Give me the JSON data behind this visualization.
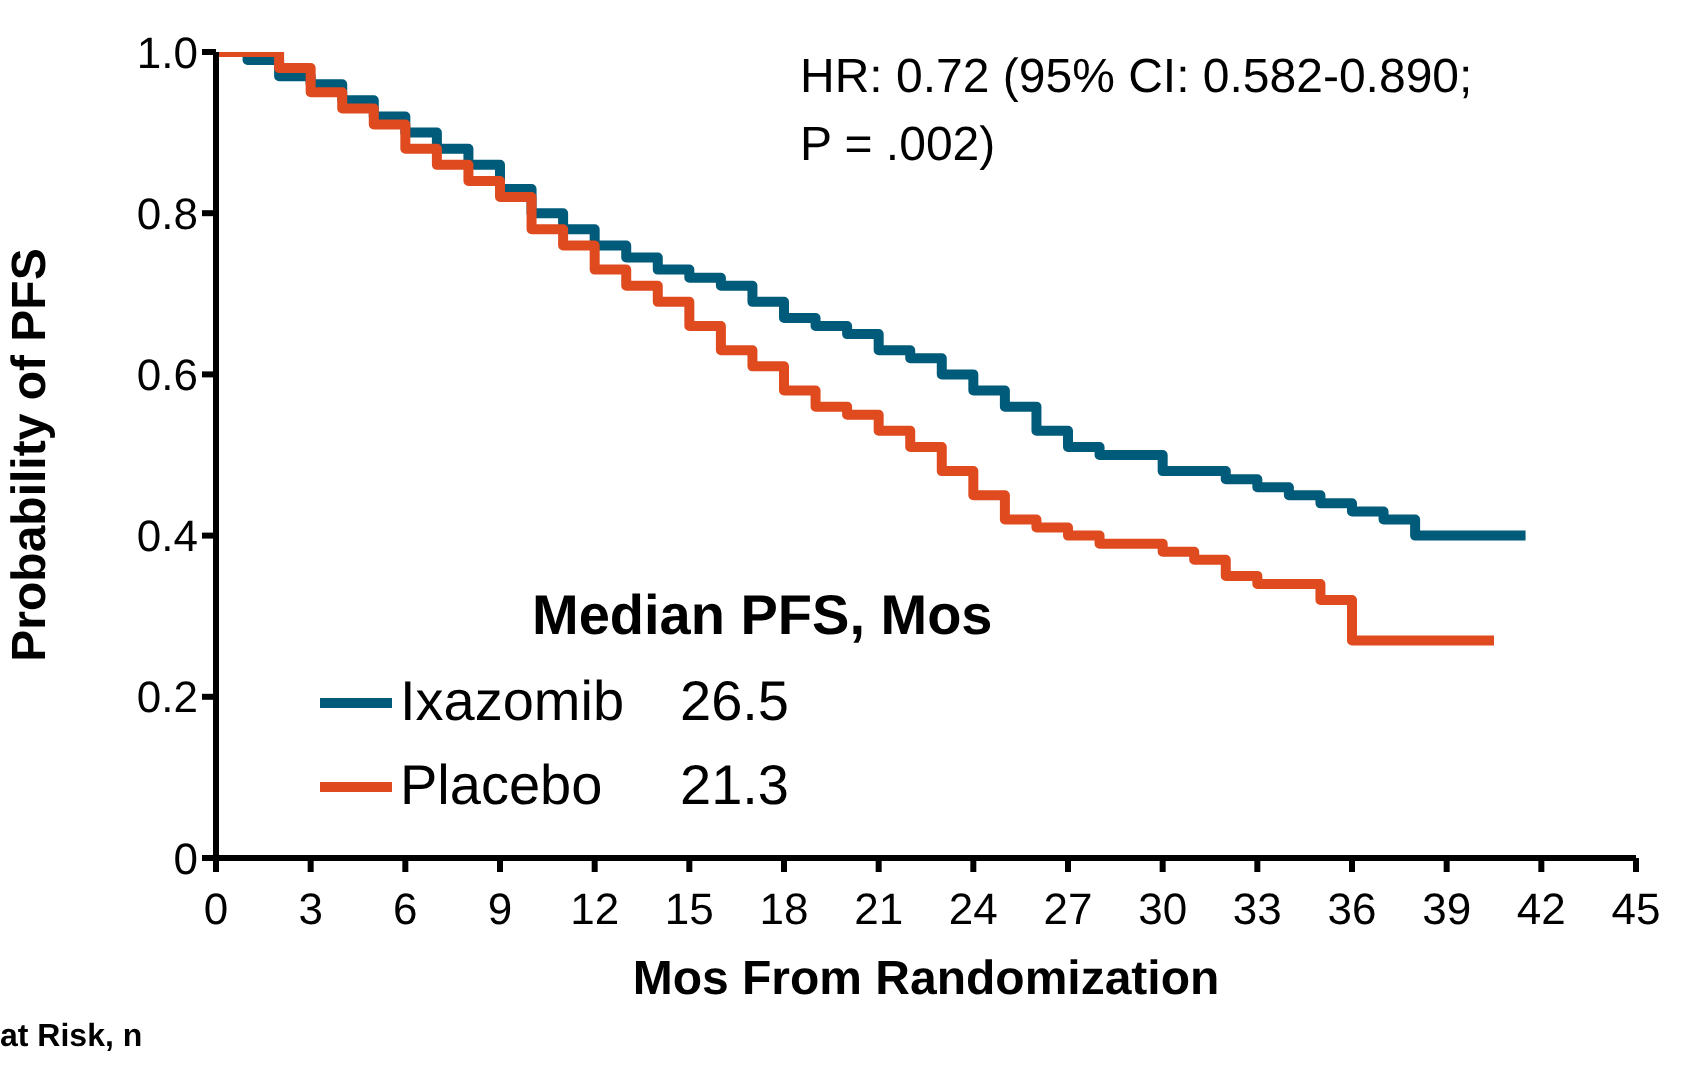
{
  "chart_data": {
    "type": "step",
    "xlabel": "Mos From Randomization",
    "ylabel": "Probability of PFS",
    "legend_title": "Median PFS, Mos",
    "legend": "bottom left",
    "xlim": [
      0,
      45
    ],
    "xticks": [
      0,
      3,
      6,
      9,
      12,
      15,
      18,
      21,
      24,
      27,
      30,
      33,
      36,
      39,
      42,
      45
    ],
    "ylim": [
      0,
      1
    ],
    "yticks": [
      {
        "value": 0,
        "label": "0"
      },
      0.2,
      0.4,
      0.6,
      0.8,
      {
        "value": 1,
        "label": "1.0"
      }
    ],
    "series": [
      {
        "name": "Ixazomib",
        "color": "#005b7a",
        "x": [
          0,
          1,
          2,
          3,
          4,
          5,
          6,
          7,
          8,
          9,
          10,
          11,
          12,
          13,
          14,
          15,
          16,
          17,
          18,
          19,
          20,
          21,
          22,
          23,
          24,
          25,
          26,
          27,
          28,
          29,
          30,
          31,
          32,
          33,
          34,
          35,
          36,
          37,
          38,
          39,
          41.5
        ],
        "values": [
          1.0,
          0.99,
          0.97,
          0.96,
          0.94,
          0.92,
          0.9,
          0.88,
          0.86,
          0.83,
          0.8,
          0.78,
          0.76,
          0.745,
          0.73,
          0.72,
          0.71,
          0.69,
          0.67,
          0.66,
          0.65,
          0.63,
          0.62,
          0.6,
          0.58,
          0.56,
          0.53,
          0.51,
          0.5,
          0.5,
          0.48,
          0.48,
          0.47,
          0.46,
          0.45,
          0.44,
          0.43,
          0.42,
          0.4,
          0.4,
          0.4
        ]
      },
      {
        "name": "Placebo",
        "color": "#e04a1f",
        "x": [
          0,
          1,
          2,
          3,
          4,
          5,
          6,
          7,
          8,
          9,
          10,
          11,
          12,
          13,
          14,
          15,
          16,
          17,
          18,
          19,
          20,
          21,
          22,
          23,
          24,
          25,
          26,
          27,
          28,
          29,
          30,
          31,
          32,
          33,
          34,
          35,
          36,
          37,
          40.5
        ],
        "values": [
          1.0,
          1.0,
          0.98,
          0.95,
          0.93,
          0.91,
          0.88,
          0.86,
          0.84,
          0.82,
          0.78,
          0.76,
          0.73,
          0.71,
          0.69,
          0.66,
          0.63,
          0.61,
          0.58,
          0.56,
          0.55,
          0.53,
          0.51,
          0.48,
          0.45,
          0.42,
          0.41,
          0.4,
          0.39,
          0.39,
          0.38,
          0.37,
          0.35,
          0.34,
          0.34,
          0.32,
          0.27,
          0.27,
          0.27
        ]
      }
    ],
    "annotations": [
      "HR: 0.72 (95% CI: 0.582-0.890;",
      "P = .002)",
      "26.5",
      "21.3",
      "at Risk, n"
    ]
  }
}
